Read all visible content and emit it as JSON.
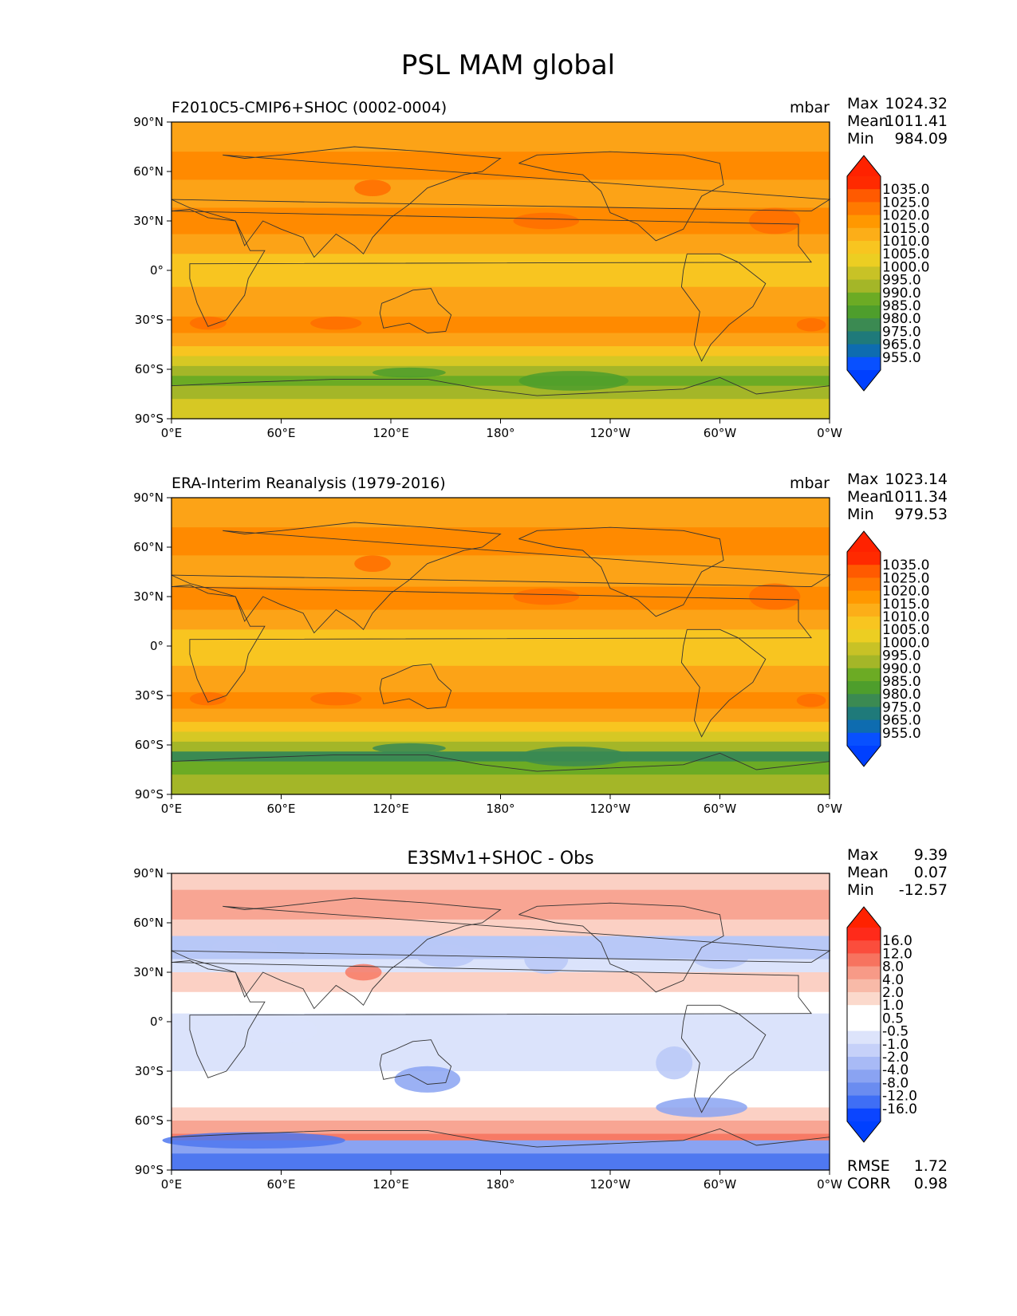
{
  "chart_data": {
    "type": "heatmap",
    "title": "PSL MAM global",
    "panels": [
      {
        "id": "test",
        "left_title": "F2010C5-CMIP6+SHOC (0002-0004)",
        "center_title": "",
        "units": "mbar",
        "stats": {
          "max_label": "Max",
          "max": "1024.32",
          "mean_label": "Mean",
          "mean": "1011.41",
          "min_label": "Min",
          "min": "984.09"
        },
        "colorbar": {
          "labels": [
            "1035.0",
            "1025.0",
            "1020.0",
            "1015.0",
            "1010.0",
            "1005.0",
            "1000.0",
            "995.0",
            "990.0",
            "985.0",
            "980.0",
            "975.0",
            "965.0",
            "955.0"
          ],
          "colors": [
            "#ff2a00",
            "#ff5a00",
            "#ff7a00",
            "#ff9800",
            "#fcae18",
            "#f8c520",
            "#ecce22",
            "#c8c226",
            "#a4b628",
            "#6cab24",
            "#4e9e2c",
            "#3b8a52",
            "#1f7a7a",
            "#0e6cb0",
            "#0850ff"
          ],
          "top_color": "#ff2200",
          "bottom_color": "#0040ff"
        },
        "field_levels": [
          "#ff6d00",
          "#ff8a00",
          "#fca317",
          "#f8c520",
          "#d6c824",
          "#a4b628",
          "#6cab24",
          "#4e9e2c"
        ]
      },
      {
        "id": "ref",
        "left_title": "ERA-Interim Reanalysis (1979-2016)",
        "center_title": "",
        "units": "mbar",
        "stats": {
          "max_label": "Max",
          "max": "1023.14",
          "mean_label": "Mean",
          "mean": "1011.34",
          "min_label": "Min",
          "min": "979.53"
        },
        "colorbar": {
          "labels": [
            "1035.0",
            "1025.0",
            "1020.0",
            "1015.0",
            "1010.0",
            "1005.0",
            "1000.0",
            "995.0",
            "990.0",
            "985.0",
            "980.0",
            "975.0",
            "965.0",
            "955.0"
          ],
          "colors": [
            "#ff2a00",
            "#ff5a00",
            "#ff7a00",
            "#ff9800",
            "#fcae18",
            "#f8c520",
            "#ecce22",
            "#c8c226",
            "#a4b628",
            "#6cab24",
            "#4e9e2c",
            "#3b8a52",
            "#1f7a7a",
            "#0e6cb0",
            "#0850ff"
          ],
          "top_color": "#ff2200",
          "bottom_color": "#0040ff"
        },
        "field_levels": [
          "#ff6d00",
          "#ff8a00",
          "#fca317",
          "#f8c520",
          "#d6c824",
          "#a4b628",
          "#6cab24",
          "#3b8a52"
        ]
      },
      {
        "id": "diff",
        "left_title": "",
        "center_title": "E3SMv1+SHOC - Obs",
        "units": "",
        "stats": {
          "max_label": "Max",
          "max": "9.39",
          "mean_label": "Mean",
          "mean": "0.07",
          "min_label": "Min",
          "min": "-12.57"
        },
        "extra_stats": {
          "rmse_label": "RMSE",
          "rmse": "1.72",
          "corr_label": "CORR",
          "corr": "0.98"
        },
        "colorbar": {
          "labels": [
            "16.0",
            "12.0",
            "8.0",
            "4.0",
            "2.0",
            "1.0",
            "0.5",
            "-0.5",
            "-1.0",
            "-2.0",
            "-4.0",
            "-8.0",
            "-12.0",
            "-16.0"
          ],
          "colors": [
            "#ff2a1a",
            "#fb4d3c",
            "#f7735f",
            "#f79a87",
            "#f8baa8",
            "#fbd9cc",
            "#ffffff",
            "#ffffff",
            "#dde4fb",
            "#c6d1f9",
            "#a8baf6",
            "#8aa3f2",
            "#6a8cf0",
            "#3f6ef5",
            "#0b45ff"
          ],
          "top_color": "#ff2200",
          "bottom_color": "#0040ff"
        },
        "field_levels": [
          "#f77a65",
          "#f8a593",
          "#fbd0c4",
          "#ffffff",
          "#dbe3fb",
          "#b8c8f7",
          "#8aa3f2",
          "#4f78f0"
        ]
      }
    ],
    "x_ticks": [
      "0°E",
      "60°E",
      "120°E",
      "180°",
      "120°W",
      "60°W",
      "0°W"
    ],
    "x_tick_lons": [
      0,
      60,
      120,
      180,
      240,
      300,
      360
    ],
    "y_ticks": [
      "90°N",
      "60°N",
      "30°N",
      "0°",
      "30°S",
      "60°S",
      "90°S"
    ],
    "y_tick_lats": [
      90,
      60,
      30,
      0,
      -30,
      -60,
      -90
    ],
    "xlim": [
      0,
      360
    ],
    "ylim": [
      -90,
      90
    ]
  }
}
